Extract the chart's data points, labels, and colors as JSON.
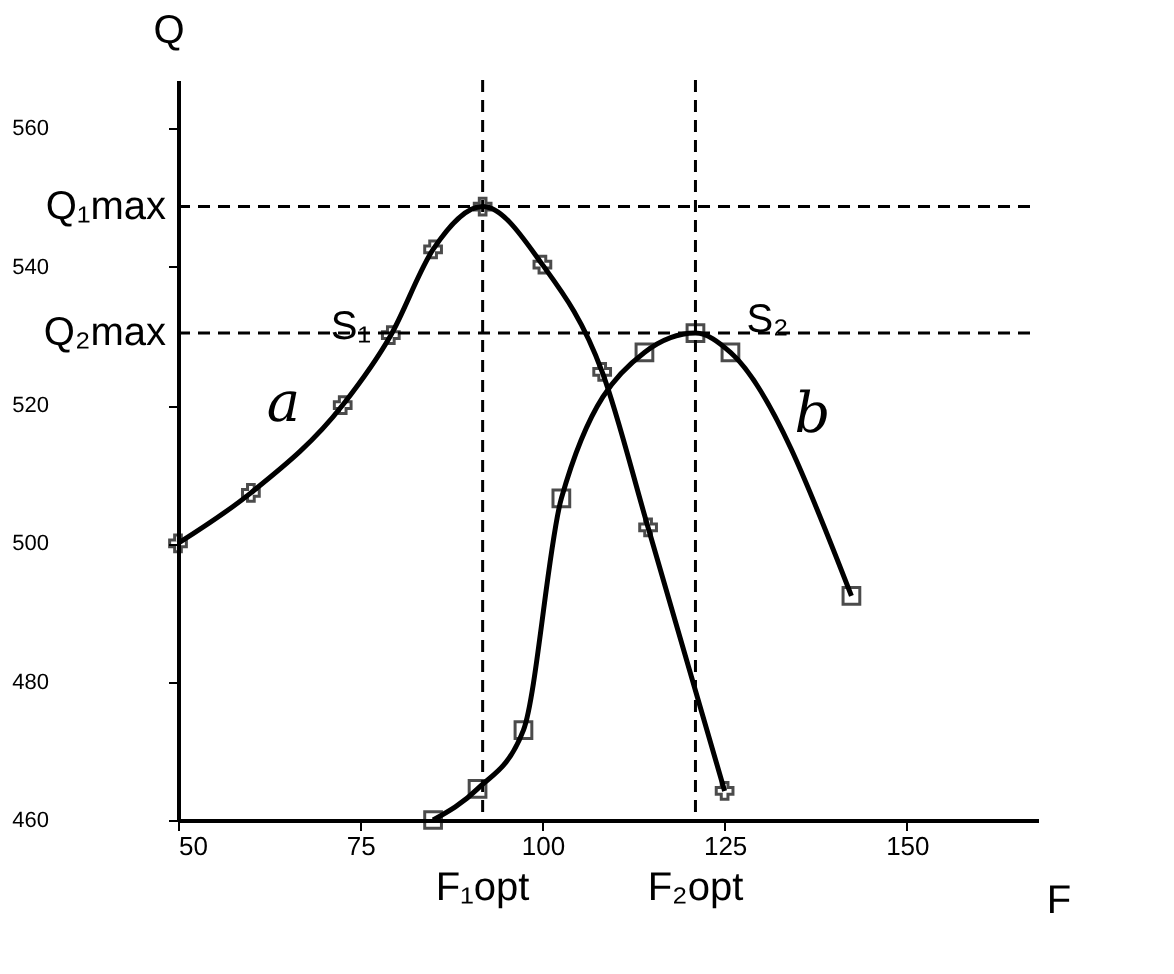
{
  "chart_data": {
    "type": "line",
    "xlabel": "F",
    "ylabel": "Q",
    "xlim": [
      50,
      168
    ],
    "ylim": [
      460,
      567
    ],
    "xticks": [
      50,
      75,
      100,
      125,
      150
    ],
    "yticks": [
      460,
      480,
      500,
      520,
      540,
      560
    ],
    "grid": false,
    "line_style": "solid",
    "series": [
      {
        "name": "S₁",
        "color": "#000000",
        "marker": "cross",
        "x": [
          50,
          60,
          72.6,
          79.2,
          85,
          91.8,
          100,
          108.2,
          114.5,
          125
        ],
        "values": [
          500,
          507.3,
          520,
          530.1,
          542.5,
          548.7,
          540.3,
          524.8,
          502.3,
          464.2
        ]
      },
      {
        "name": "S₂",
        "color": "#000000",
        "marker": "square",
        "x": [
          85,
          91.1,
          97.4,
          102.6,
          114,
          121,
          125.8,
          142.4
        ],
        "values": [
          460,
          464.5,
          473,
          506.5,
          527.6,
          530.4,
          527.6,
          492.4
        ]
      }
    ],
    "ref_lines": [
      {
        "axis": "y",
        "value": 548.7,
        "label": "Q₁max",
        "line_style": "dashed"
      },
      {
        "axis": "y",
        "value": 530.4,
        "label": "Q₂max",
        "line_style": "dashed"
      },
      {
        "axis": "x",
        "value": 91.8,
        "label": "F₁opt",
        "line_style": "dashed"
      },
      {
        "axis": "x",
        "value": 121,
        "label": "F₂opt",
        "line_style": "dashed"
      }
    ],
    "annotations": [
      "a",
      "b"
    ]
  }
}
